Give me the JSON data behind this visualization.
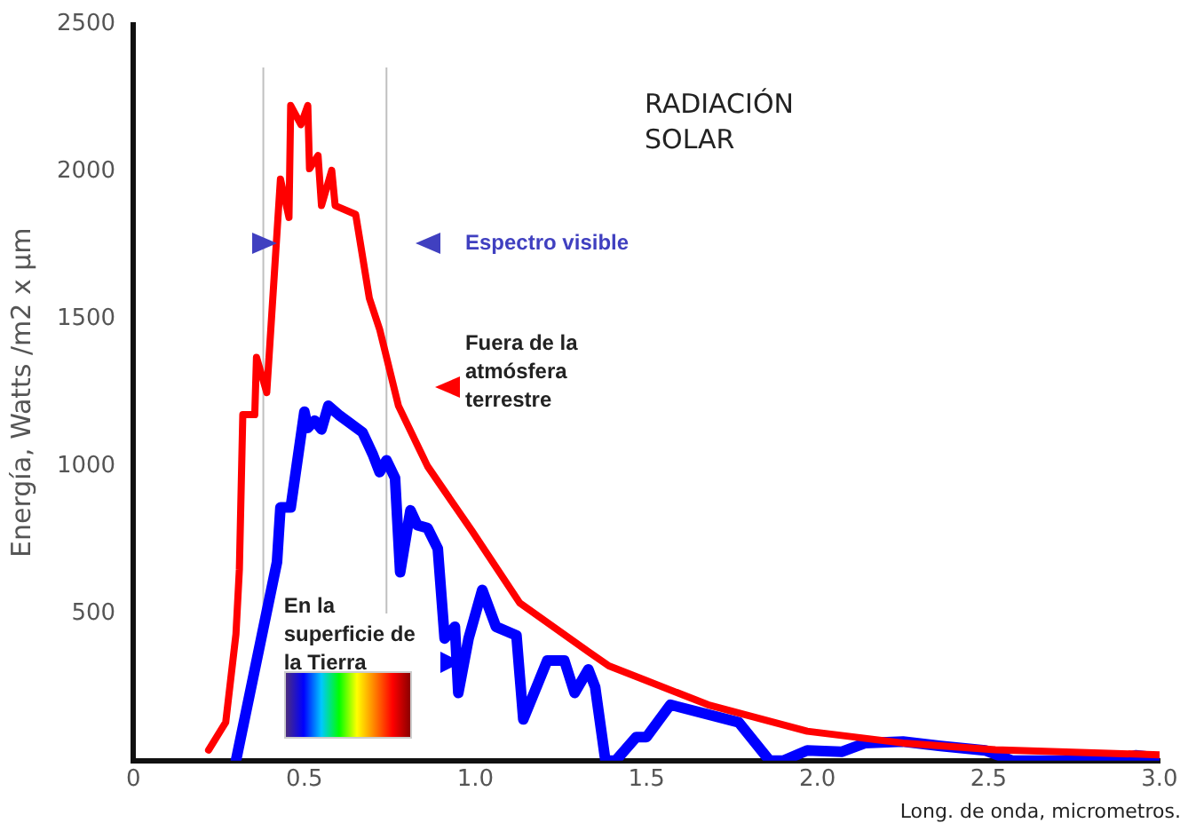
{
  "chart_data": {
    "type": "line",
    "title": "RADIACIÓN\nSOLAR",
    "xlabel": "Long. de onda, micrometros.",
    "ylabel": "Energía, Watts /m2 x µm",
    "series": [
      {
        "name": "Fuera de la\natmósfera\nterrestre",
        "color": "#ff0000",
        "x": [
          0.22,
          0.27,
          0.3,
          0.31,
          0.32,
          0.355,
          0.36,
          0.39,
          0.43,
          0.455,
          0.46,
          0.49,
          0.51,
          0.515,
          0.54,
          0.55,
          0.58,
          0.59,
          0.65,
          0.69,
          0.72,
          0.775,
          0.86,
          0.99,
          1.13,
          1.33,
          1.39,
          1.68,
          1.97,
          2.25,
          2.52,
          3.0
        ],
        "values": [
          36,
          130,
          430,
          650,
          1175,
          1175,
          1370,
          1250,
          1975,
          1845,
          2225,
          2160,
          2225,
          2010,
          2055,
          1885,
          2005,
          1885,
          1855,
          1570,
          1465,
          1205,
          1000,
          780,
          535,
          370,
          322,
          190,
          100,
          60,
          37,
          20
        ]
      },
      {
        "name": "En la\nsuperficie de\nla Tierra",
        "color": "#0000ff",
        "x": [
          0.3,
          0.42,
          0.43,
          0.46,
          0.5,
          0.51,
          0.53,
          0.55,
          0.57,
          0.6,
          0.67,
          0.7,
          0.72,
          0.74,
          0.765,
          0.78,
          0.81,
          0.83,
          0.86,
          0.89,
          0.91,
          0.94,
          0.95,
          0.98,
          1.02,
          1.06,
          1.12,
          1.14,
          1.21,
          1.26,
          1.29,
          1.33,
          1.35,
          1.38,
          1.41,
          1.47,
          1.5,
          1.57,
          1.77,
          1.86,
          1.9,
          1.97,
          2.07,
          2.14,
          2.25,
          2.36,
          2.49,
          2.57,
          2.88,
          2.93,
          3.0
        ],
        "values": [
          0,
          675,
          860,
          860,
          1185,
          1130,
          1155,
          1125,
          1205,
          1175,
          1115,
          1040,
          980,
          1020,
          960,
          640,
          850,
          800,
          790,
          720,
          415,
          455,
          230,
          415,
          580,
          455,
          425,
          140,
          340,
          340,
          230,
          310,
          250,
          0,
          0,
          80,
          80,
          190,
          130,
          0,
          0,
          35,
          30,
          60,
          65,
          50,
          35,
          0,
          0,
          18,
          10
        ]
      }
    ],
    "xlim": [
      0,
      3
    ],
    "xticks": [
      0,
      0.5,
      {
        "value": 1,
        "label": "1.0"
      },
      1.5,
      {
        "value": 2,
        "label": "2.0"
      },
      2.5,
      {
        "value": 3,
        "label": "3.0"
      }
    ],
    "ylim": [
      0,
      2500
    ],
    "yticks": [
      500,
      1000,
      1500,
      2000,
      2500
    ],
    "ref_lines": [
      {
        "axis": "x",
        "value": 0.38,
        "color": "#c0c0c0"
      },
      {
        "axis": "x",
        "value": 0.74,
        "color": "#c0c0c0"
      }
    ],
    "annotations": [
      "Espectro visible"
    ],
    "grid": false,
    "legend": false,
    "marker": "none",
    "line_style": "solid"
  }
}
